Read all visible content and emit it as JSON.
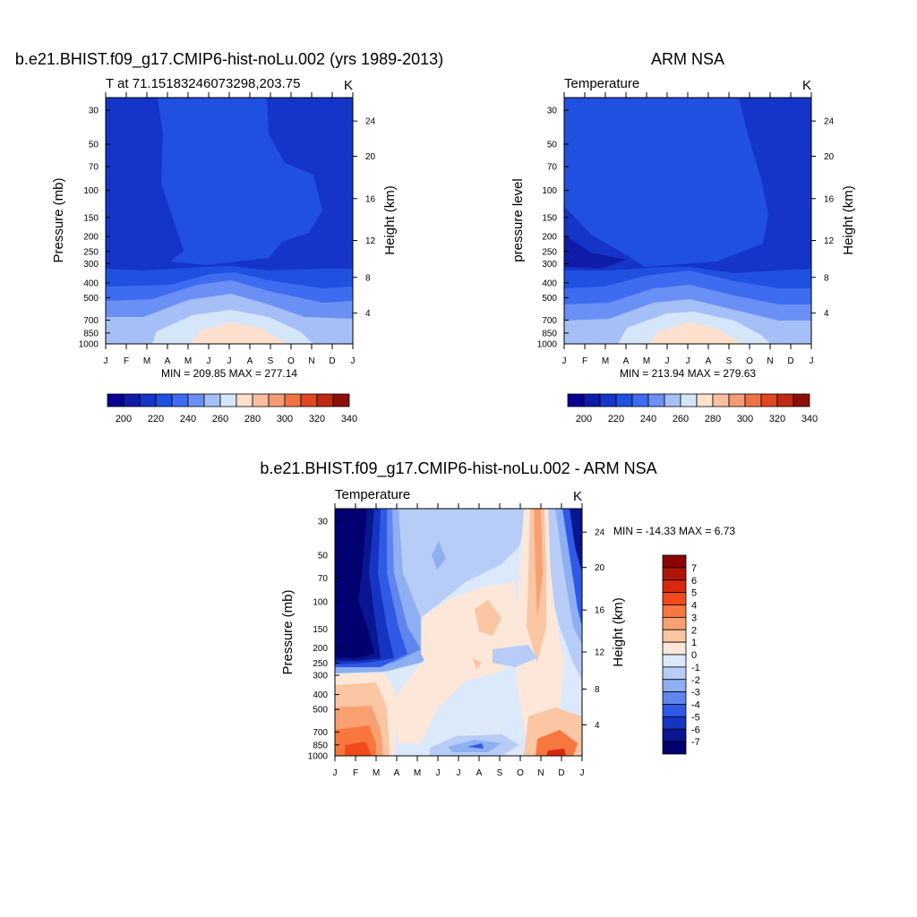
{
  "chart_data": [
    {
      "type": "heatmap",
      "title": "b.e21.BHIST.f09_g17.CMIP6-hist-noLu.002 (yrs 1989-2013)",
      "subtitle_left": "T at 71.15183246073298,203.75",
      "subtitle_right": "K",
      "ylabel": "Pressure (mb)",
      "ylabel_right": "Height (km)",
      "x_ticks": [
        "J",
        "F",
        "M",
        "A",
        "M",
        "J",
        "J",
        "A",
        "S",
        "O",
        "N",
        "D",
        "J"
      ],
      "y_ticks": [
        "30",
        "50",
        "70",
        "100",
        "150",
        "200",
        "250",
        "300",
        "400",
        "500",
        "700",
        "850",
        "1000"
      ],
      "y_right_ticks": [
        "24",
        "20",
        "16",
        "12",
        "8",
        "4"
      ],
      "stats": "MIN = 209.85 MAX = 277.14",
      "min": 209.85,
      "max": 277.14,
      "colorbar_labels": [
        "200",
        "220",
        "240",
        "260",
        "280",
        "300",
        "320",
        "340"
      ]
    },
    {
      "type": "heatmap",
      "title": "ARM NSA",
      "subtitle_left": "Temperature",
      "subtitle_right": "K",
      "ylabel": "pressure level",
      "ylabel_right": "Height (km)",
      "x_ticks": [
        "J",
        "F",
        "M",
        "A",
        "M",
        "J",
        "J",
        "A",
        "S",
        "O",
        "N",
        "D",
        "J"
      ],
      "y_ticks": [
        "30",
        "50",
        "70",
        "100",
        "150",
        "200",
        "250",
        "300",
        "400",
        "500",
        "700",
        "850",
        "1000"
      ],
      "y_right_ticks": [
        "24",
        "20",
        "16",
        "12",
        "8",
        "4"
      ],
      "stats": "MIN = 213.94 MAX = 279.63",
      "min": 213.94,
      "max": 279.63,
      "colorbar_labels": [
        "200",
        "220",
        "240",
        "260",
        "280",
        "300",
        "320",
        "340"
      ]
    },
    {
      "type": "heatmap",
      "title": "b.e21.BHIST.f09_g17.CMIP6-hist-noLu.002 - ARM NSA",
      "subtitle_left": "Temperature",
      "subtitle_right": "K",
      "ylabel": "Pressure (mb)",
      "ylabel_right": "Height (km)",
      "x_ticks": [
        "J",
        "F",
        "M",
        "A",
        "M",
        "J",
        "J",
        "A",
        "S",
        "O",
        "N",
        "D",
        "J"
      ],
      "y_ticks": [
        "30",
        "50",
        "70",
        "100",
        "150",
        "200",
        "250",
        "300",
        "400",
        "500",
        "700",
        "850",
        "1000"
      ],
      "y_right_ticks": [
        "24",
        "20",
        "16",
        "12",
        "8",
        "4"
      ],
      "stats": "MIN = -14.33 MAX =   6.73",
      "min": -14.33,
      "max": 6.73,
      "colorbar_labels": [
        "7",
        "6",
        "5",
        "4",
        "3",
        "2",
        "1",
        "0",
        "-1",
        "-2",
        "-3",
        "-4",
        "-5",
        "-6",
        "-7"
      ]
    }
  ],
  "palettes": {
    "temperature": [
      "#08008f",
      "#0f1ca8",
      "#1535c8",
      "#2050e0",
      "#3d6cf0",
      "#6b90f5",
      "#a6c0f7",
      "#d6e6fa",
      "#fde0cd",
      "#f9bfa0",
      "#f49a76",
      "#ee7448",
      "#e04722",
      "#c02a12",
      "#8d0e08"
    ],
    "difference": [
      "#8b0000",
      "#b01608",
      "#d8280c",
      "#f24a1c",
      "#f8773f",
      "#f9a070",
      "#fac6a3",
      "#fde7d8",
      "#dce9fb",
      "#b7cdf7",
      "#8eaff2",
      "#5f86ef",
      "#3059e6",
      "#1435c4",
      "#0a1590",
      "#000070"
    ]
  }
}
